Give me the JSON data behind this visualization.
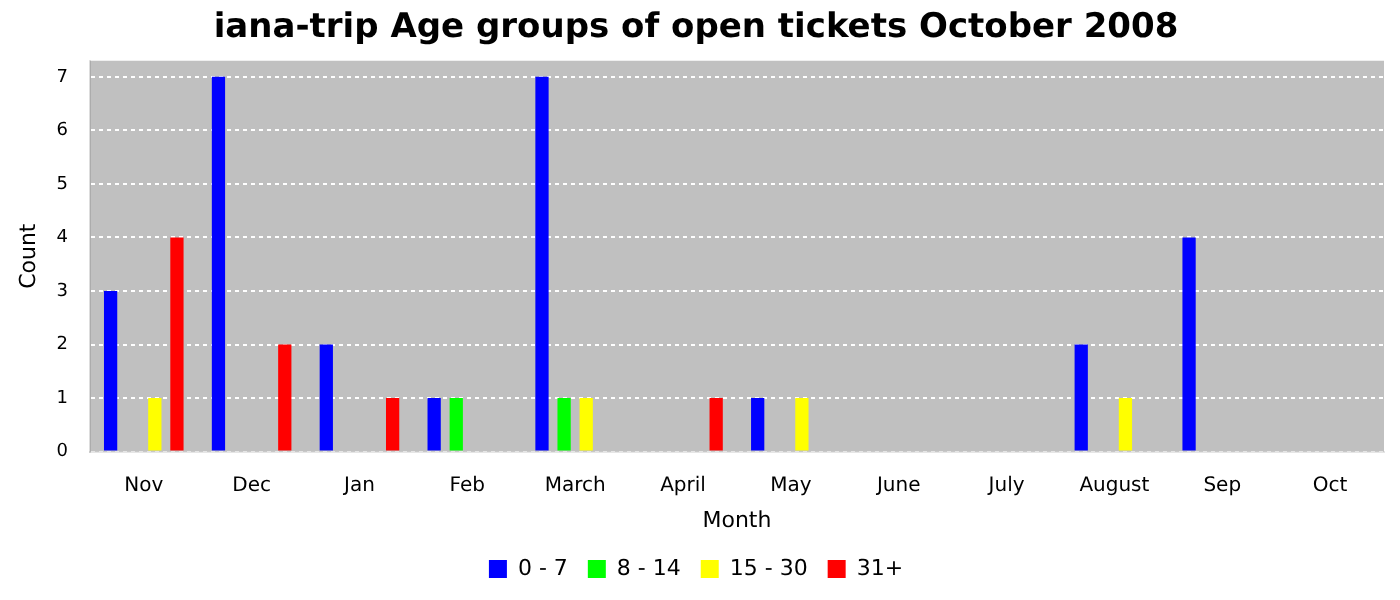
{
  "chart_data": {
    "type": "bar",
    "title": "iana-trip Age groups of open tickets October 2008",
    "xlabel": "Month",
    "ylabel": "Count",
    "categories": [
      "Nov",
      "Dec",
      "Jan",
      "Feb",
      "March",
      "April",
      "May",
      "June",
      "July",
      "August",
      "Sep",
      "Oct"
    ],
    "series": [
      {
        "name": "0 - 7",
        "color": "#0000ff",
        "values": [
          3,
          7,
          2,
          1,
          7,
          0,
          1,
          0,
          0,
          2,
          4,
          0
        ]
      },
      {
        "name": "8 - 14",
        "color": "#00ff00",
        "values": [
          0,
          0,
          0,
          1,
          1,
          0,
          0,
          0,
          0,
          0,
          0,
          0
        ]
      },
      {
        "name": "15 - 30",
        "color": "#ffff00",
        "values": [
          1,
          0,
          0,
          0,
          1,
          0,
          1,
          0,
          0,
          1,
          0,
          0
        ]
      },
      {
        "name": "31+",
        "color": "#ff0000",
        "values": [
          4,
          2,
          1,
          0,
          0,
          1,
          0,
          0,
          0,
          0,
          0,
          0
        ]
      }
    ],
    "ylim": [
      0,
      7.3
    ],
    "yticks": [
      0,
      1,
      2,
      3,
      4,
      5,
      6,
      7
    ],
    "grid": "y",
    "legend": "bottom"
  }
}
